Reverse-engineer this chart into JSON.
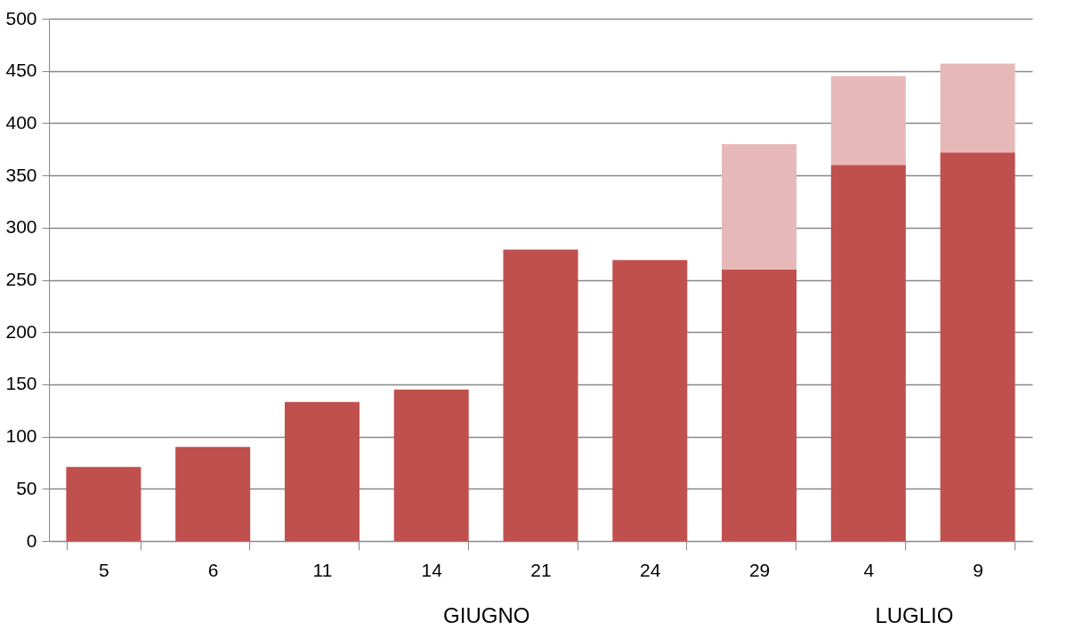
{
  "chart_data": {
    "type": "bar",
    "stacked": true,
    "categories": [
      "5",
      "6",
      "11",
      "14",
      "21",
      "24",
      "29",
      "4",
      "9"
    ],
    "series": [
      {
        "color": "#c0504d",
        "values": [
          71,
          90,
          133,
          145,
          279,
          269,
          260,
          360,
          372
        ]
      },
      {
        "color": "#e6b9b8",
        "values": [
          null,
          null,
          null,
          null,
          null,
          null,
          120,
          85,
          85
        ]
      }
    ],
    "ylim": [
      0,
      500
    ],
    "yticks": [
      0,
      50,
      100,
      150,
      200,
      250,
      300,
      350,
      400,
      450,
      500
    ],
    "grid": "y",
    "annotations": [
      "GIUGNO",
      "LUGLIO"
    ]
  }
}
